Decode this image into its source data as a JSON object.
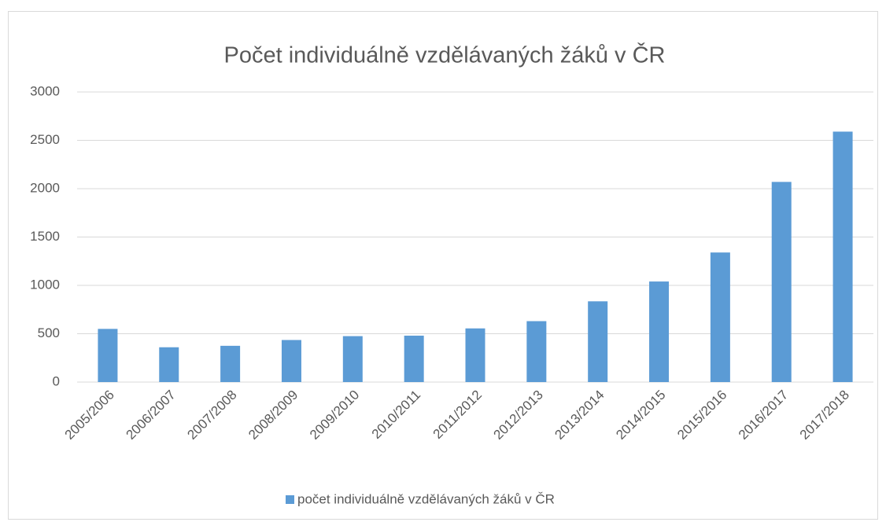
{
  "chart_data": {
    "type": "bar",
    "title": "Počet individuálně vzdělávaných žáků v ČR",
    "categories": [
      "2005/2006",
      "2006/2007",
      "2007/2008",
      "2008/2009",
      "2009/2010",
      "2010/2011",
      "2011/2012",
      "2012/2013",
      "2013/2014",
      "2014/2015",
      "2015/2016",
      "2016/2017",
      "2017/2018"
    ],
    "series": [
      {
        "name": "počet individuálně vzdělávaných žáků v ČR",
        "color": "#5b9bd5",
        "values": [
          550,
          360,
          375,
          435,
          475,
          480,
          555,
          630,
          835,
          1040,
          1340,
          2070,
          2590
        ]
      }
    ],
    "ylim": [
      0,
      3000
    ],
    "yticks": [
      0,
      500,
      1000,
      1500,
      2000,
      2500,
      3000
    ],
    "grid": true,
    "legend": "bottom"
  }
}
